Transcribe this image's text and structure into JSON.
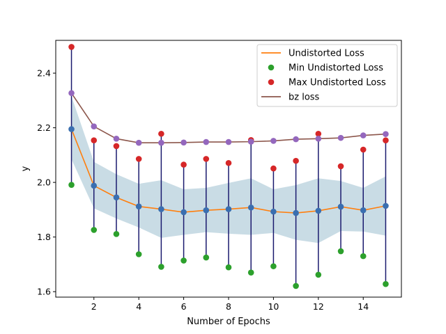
{
  "chart_data": {
    "type": "line",
    "title": "",
    "xlabel": "Number of Epochs",
    "ylabel": "y",
    "xlim": [
      0.3,
      15.7
    ],
    "ylim": [
      1.58,
      2.52
    ],
    "xticks": [
      2,
      4,
      6,
      8,
      10,
      12,
      14
    ],
    "yticks": [
      1.6,
      1.8,
      2.0,
      2.2,
      2.4
    ],
    "ytick_labels": [
      "1.6",
      "1.8",
      "2.0",
      "2.2",
      "2.4"
    ],
    "grid": false,
    "legend_position": "top-right",
    "x": [
      1,
      2,
      3,
      4,
      5,
      6,
      7,
      8,
      9,
      10,
      11,
      12,
      13,
      14,
      15
    ],
    "series": [
      {
        "name": "Undistorted Loss",
        "kind": "line",
        "color": "#ff7f0e",
        "values": [
          2.195,
          1.988,
          1.945,
          1.912,
          1.902,
          1.891,
          1.898,
          1.902,
          1.908,
          1.893,
          1.888,
          1.896,
          1.911,
          1.898,
          1.914
        ]
      },
      {
        "name": "Min Undistorted Loss",
        "kind": "scatter",
        "color": "#2ca02c",
        "values": [
          1.991,
          1.826,
          1.811,
          1.737,
          1.691,
          1.714,
          1.725,
          1.689,
          1.67,
          1.693,
          1.621,
          1.662,
          1.748,
          1.73,
          1.628
        ]
      },
      {
        "name": "Max Undistorted Loss",
        "kind": "scatter",
        "color": "#d62728",
        "values": [
          2.496,
          2.154,
          2.133,
          2.086,
          2.178,
          2.065,
          2.086,
          2.071,
          2.155,
          2.051,
          2.079,
          2.178,
          2.059,
          2.12,
          2.154
        ]
      },
      {
        "name": "bz loss",
        "kind": "line",
        "color": "#8c564b",
        "values": [
          2.327,
          2.205,
          2.16,
          2.145,
          2.145,
          2.146,
          2.148,
          2.148,
          2.149,
          2.152,
          2.158,
          2.16,
          2.163,
          2.172,
          2.177
        ]
      }
    ],
    "band": {
      "color": "#9cc0cf",
      "lower": [
        2.085,
        1.905,
        1.868,
        1.835,
        1.797,
        1.808,
        1.818,
        1.812,
        1.808,
        1.815,
        1.79,
        1.778,
        1.822,
        1.82,
        1.805
      ],
      "upper": [
        2.315,
        2.075,
        2.03,
        1.995,
        2.008,
        1.975,
        1.98,
        1.998,
        2.015,
        1.975,
        1.99,
        2.015,
        2.005,
        1.98,
        2.022
      ]
    },
    "markers": {
      "undistorted_point_color": "#3a6fb0",
      "bz_point_color": "#9467bd",
      "error_line_color": "#1a1a6e"
    }
  }
}
